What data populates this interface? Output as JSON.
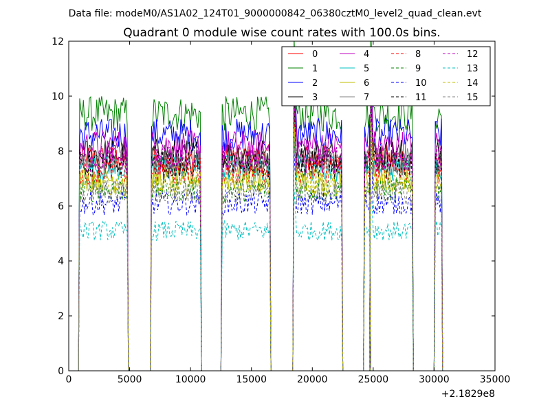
{
  "header": {
    "data_file_label": "Data file: modeM0/AS1A02_124T01_9000000842_06380cztM0_level2_quad_clean.evt"
  },
  "chart_data": {
    "type": "line",
    "title": "Quadrant 0 module wise count rates with 100.0s bins.",
    "xlabel": "",
    "ylabel": "",
    "x_offset_label": "+2.1829e8",
    "xlim": [
      0,
      35000
    ],
    "ylim": [
      0,
      12
    ],
    "x_ticks": [
      0,
      5000,
      10000,
      15000,
      20000,
      25000,
      30000,
      35000
    ],
    "x_tick_labels": [
      "0",
      "5000",
      "10000",
      "15000",
      "20000",
      "25000",
      "30000",
      "35000"
    ],
    "y_ticks": [
      0,
      2,
      4,
      6,
      8,
      10,
      12
    ],
    "y_tick_labels": [
      "0",
      "2",
      "4",
      "6",
      "8",
      "10",
      "12"
    ],
    "grid": false,
    "legend_position": "top-right",
    "legend_columns": 4,
    "bin_seconds": 100,
    "on_segments": [
      [
        900,
        4800
      ],
      [
        6800,
        10800
      ],
      [
        12600,
        16500
      ],
      [
        18500,
        22400
      ],
      [
        24300,
        24700
      ],
      [
        24800,
        28200
      ],
      [
        30100,
        30600
      ]
    ],
    "segment_spikes": [
      {
        "segment": 3,
        "start_mult": 1.3
      },
      {
        "segment": 5,
        "start_mult": 1.33
      }
    ],
    "series": [
      {
        "name": "0",
        "color": "#ff0000",
        "style": "solid",
        "level": 7.7
      },
      {
        "name": "1",
        "color": "#008000",
        "style": "solid",
        "level": 9.35
      },
      {
        "name": "2",
        "color": "#0000ff",
        "style": "solid",
        "level": 8.6
      },
      {
        "name": "3",
        "color": "#000000",
        "style": "solid",
        "level": 7.9
      },
      {
        "name": "4",
        "color": "#bf00bf",
        "style": "solid",
        "level": 8.2
      },
      {
        "name": "5",
        "color": "#00bfbf",
        "style": "solid",
        "level": 7.4
      },
      {
        "name": "6",
        "color": "#bfbf00",
        "style": "solid",
        "level": 7.0
      },
      {
        "name": "7",
        "color": "#808080",
        "style": "solid",
        "level": 7.6
      },
      {
        "name": "8",
        "color": "#ff0000",
        "style": "dashed",
        "level": 7.3
      },
      {
        "name": "9",
        "color": "#008000",
        "style": "dashed",
        "level": 6.6
      },
      {
        "name": "10",
        "color": "#0000ff",
        "style": "dashed",
        "level": 6.1
      },
      {
        "name": "11",
        "color": "#000000",
        "style": "dashed",
        "level": 7.5
      },
      {
        "name": "12",
        "color": "#bf00bf",
        "style": "dashed",
        "level": 7.7
      },
      {
        "name": "13",
        "color": "#00bfbf",
        "style": "dashed",
        "level": 5.1
      },
      {
        "name": "14",
        "color": "#bfbf00",
        "style": "dashed",
        "level": 6.8
      },
      {
        "name": "15",
        "color": "#808080",
        "style": "dashed",
        "level": 6.5
      }
    ]
  }
}
